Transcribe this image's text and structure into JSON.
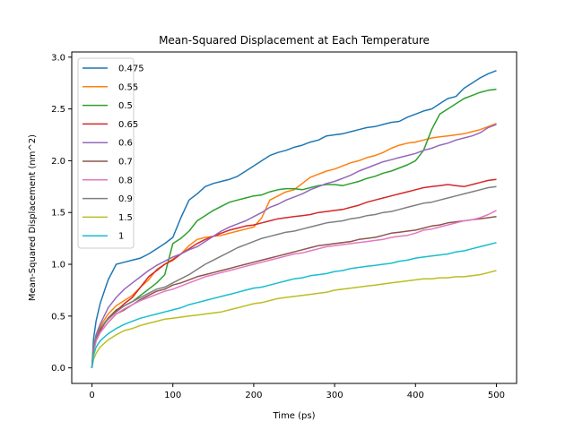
{
  "chart_data": {
    "type": "line",
    "title": "Mean-Squared Displacement at Each Temperature",
    "xlabel": "Time (ps)",
    "ylabel": "Mean-Squared Displacement (nm^2)",
    "xlim": [
      -25,
      525
    ],
    "ylim": [
      -0.15,
      3.05
    ],
    "xticks": [
      0,
      100,
      200,
      300,
      400,
      500
    ],
    "yticks": [
      0.0,
      0.5,
      1.0,
      1.5,
      2.0,
      2.5,
      3.0
    ],
    "xtick_labels": [
      "0",
      "100",
      "200",
      "300",
      "400",
      "500"
    ],
    "ytick_labels": [
      "0.0",
      "0.5",
      "1.0",
      "1.5",
      "2.0",
      "2.5",
      "3.0"
    ],
    "legend_position": "upper-left",
    "grid": false,
    "x": [
      0,
      2,
      5,
      10,
      20,
      30,
      40,
      50,
      60,
      70,
      80,
      90,
      100,
      110,
      120,
      130,
      140,
      150,
      160,
      170,
      180,
      190,
      200,
      210,
      220,
      230,
      240,
      250,
      260,
      270,
      280,
      290,
      300,
      310,
      320,
      330,
      340,
      350,
      360,
      370,
      380,
      390,
      400,
      410,
      420,
      430,
      440,
      450,
      460,
      470,
      480,
      490,
      500
    ],
    "series": [
      {
        "name": "0.475",
        "color": "#1f77b4",
        "values": [
          0.0,
          0.28,
          0.45,
          0.62,
          0.85,
          1.0,
          1.02,
          1.04,
          1.06,
          1.1,
          1.15,
          1.2,
          1.26,
          1.45,
          1.62,
          1.68,
          1.75,
          1.78,
          1.8,
          1.82,
          1.85,
          1.9,
          1.95,
          2.0,
          2.05,
          2.08,
          2.1,
          2.13,
          2.15,
          2.18,
          2.2,
          2.24,
          2.25,
          2.26,
          2.28,
          2.3,
          2.32,
          2.33,
          2.35,
          2.37,
          2.38,
          2.42,
          2.45,
          2.48,
          2.5,
          2.55,
          2.6,
          2.62,
          2.7,
          2.75,
          2.8,
          2.84,
          2.87
        ]
      },
      {
        "name": "0.55",
        "color": "#ff7f0e",
        "values": [
          0.0,
          0.2,
          0.3,
          0.4,
          0.52,
          0.6,
          0.65,
          0.7,
          0.78,
          0.85,
          0.95,
          1.0,
          1.05,
          1.1,
          1.18,
          1.24,
          1.26,
          1.27,
          1.28,
          1.3,
          1.32,
          1.34,
          1.36,
          1.45,
          1.62,
          1.66,
          1.7,
          1.72,
          1.78,
          1.84,
          1.87,
          1.9,
          1.92,
          1.95,
          1.98,
          2.0,
          2.03,
          2.05,
          2.08,
          2.12,
          2.15,
          2.17,
          2.18,
          2.2,
          2.22,
          2.23,
          2.24,
          2.25,
          2.26,
          2.28,
          2.3,
          2.33,
          2.36
        ]
      },
      {
        "name": "0.5",
        "color": "#2ca02c",
        "values": [
          0.0,
          0.18,
          0.28,
          0.38,
          0.48,
          0.56,
          0.6,
          0.64,
          0.7,
          0.76,
          0.82,
          0.9,
          1.2,
          1.25,
          1.32,
          1.42,
          1.47,
          1.52,
          1.56,
          1.6,
          1.62,
          1.64,
          1.66,
          1.67,
          1.7,
          1.72,
          1.73,
          1.73,
          1.72,
          1.74,
          1.76,
          1.77,
          1.77,
          1.76,
          1.78,
          1.8,
          1.83,
          1.85,
          1.88,
          1.9,
          1.93,
          1.96,
          2.0,
          2.1,
          2.3,
          2.45,
          2.5,
          2.55,
          2.6,
          2.63,
          2.66,
          2.68,
          2.69
        ]
      },
      {
        "name": "0.65",
        "color": "#d62728",
        "values": [
          0.0,
          0.18,
          0.28,
          0.36,
          0.48,
          0.55,
          0.62,
          0.68,
          0.78,
          0.88,
          0.94,
          1.0,
          1.04,
          1.1,
          1.15,
          1.2,
          1.24,
          1.27,
          1.3,
          1.33,
          1.35,
          1.37,
          1.38,
          1.4,
          1.42,
          1.44,
          1.45,
          1.46,
          1.47,
          1.48,
          1.5,
          1.51,
          1.52,
          1.53,
          1.55,
          1.57,
          1.6,
          1.62,
          1.64,
          1.66,
          1.68,
          1.7,
          1.72,
          1.74,
          1.75,
          1.76,
          1.77,
          1.76,
          1.75,
          1.77,
          1.79,
          1.81,
          1.82
        ]
      },
      {
        "name": "0.6",
        "color": "#9467bd",
        "values": [
          0.0,
          0.2,
          0.32,
          0.42,
          0.58,
          0.68,
          0.76,
          0.82,
          0.88,
          0.94,
          0.99,
          1.03,
          1.07,
          1.1,
          1.14,
          1.17,
          1.22,
          1.27,
          1.32,
          1.36,
          1.39,
          1.42,
          1.46,
          1.5,
          1.55,
          1.58,
          1.62,
          1.65,
          1.68,
          1.72,
          1.75,
          1.78,
          1.8,
          1.83,
          1.86,
          1.9,
          1.93,
          1.96,
          1.99,
          2.01,
          2.03,
          2.05,
          2.07,
          2.1,
          2.12,
          2.15,
          2.17,
          2.2,
          2.22,
          2.24,
          2.27,
          2.32,
          2.35
        ]
      },
      {
        "name": "0.7",
        "color": "#8c564b",
        "values": [
          0.0,
          0.16,
          0.26,
          0.34,
          0.44,
          0.52,
          0.56,
          0.61,
          0.66,
          0.7,
          0.74,
          0.76,
          0.8,
          0.82,
          0.85,
          0.88,
          0.9,
          0.92,
          0.94,
          0.96,
          0.98,
          1.0,
          1.02,
          1.04,
          1.06,
          1.08,
          1.1,
          1.12,
          1.14,
          1.16,
          1.18,
          1.19,
          1.2,
          1.21,
          1.22,
          1.24,
          1.25,
          1.26,
          1.28,
          1.3,
          1.31,
          1.32,
          1.33,
          1.35,
          1.37,
          1.38,
          1.4,
          1.41,
          1.42,
          1.43,
          1.44,
          1.45,
          1.46
        ]
      },
      {
        "name": "0.8",
        "color": "#e377c2",
        "values": [
          0.0,
          0.16,
          0.26,
          0.34,
          0.44,
          0.52,
          0.57,
          0.61,
          0.65,
          0.68,
          0.71,
          0.74,
          0.76,
          0.79,
          0.82,
          0.85,
          0.88,
          0.9,
          0.92,
          0.94,
          0.96,
          0.98,
          1.0,
          1.02,
          1.04,
          1.06,
          1.08,
          1.1,
          1.11,
          1.13,
          1.15,
          1.17,
          1.18,
          1.19,
          1.2,
          1.21,
          1.22,
          1.23,
          1.24,
          1.26,
          1.27,
          1.28,
          1.3,
          1.33,
          1.34,
          1.36,
          1.38,
          1.4,
          1.42,
          1.43,
          1.45,
          1.48,
          1.52
        ]
      },
      {
        "name": "0.9",
        "color": "#7f7f7f",
        "values": [
          0.0,
          0.2,
          0.3,
          0.38,
          0.47,
          0.54,
          0.6,
          0.64,
          0.68,
          0.72,
          0.76,
          0.78,
          0.82,
          0.86,
          0.9,
          0.95,
          1.0,
          1.04,
          1.08,
          1.12,
          1.16,
          1.19,
          1.22,
          1.25,
          1.27,
          1.29,
          1.31,
          1.32,
          1.34,
          1.36,
          1.38,
          1.4,
          1.41,
          1.42,
          1.44,
          1.45,
          1.47,
          1.48,
          1.5,
          1.51,
          1.53,
          1.55,
          1.57,
          1.59,
          1.6,
          1.62,
          1.64,
          1.66,
          1.68,
          1.7,
          1.72,
          1.74,
          1.75
        ]
      },
      {
        "name": "1.5",
        "color": "#bcbd22",
        "values": [
          0.0,
          0.08,
          0.14,
          0.2,
          0.27,
          0.32,
          0.36,
          0.38,
          0.41,
          0.43,
          0.45,
          0.47,
          0.48,
          0.49,
          0.5,
          0.51,
          0.52,
          0.53,
          0.54,
          0.56,
          0.58,
          0.6,
          0.62,
          0.63,
          0.65,
          0.67,
          0.68,
          0.69,
          0.7,
          0.71,
          0.72,
          0.73,
          0.75,
          0.76,
          0.77,
          0.78,
          0.79,
          0.8,
          0.81,
          0.82,
          0.83,
          0.84,
          0.85,
          0.86,
          0.86,
          0.87,
          0.87,
          0.88,
          0.88,
          0.89,
          0.9,
          0.92,
          0.94
        ]
      },
      {
        "name": "1",
        "color": "#17becf",
        "values": [
          0.0,
          0.12,
          0.2,
          0.26,
          0.33,
          0.38,
          0.42,
          0.45,
          0.48,
          0.5,
          0.52,
          0.54,
          0.56,
          0.58,
          0.61,
          0.63,
          0.65,
          0.67,
          0.69,
          0.71,
          0.73,
          0.75,
          0.77,
          0.78,
          0.8,
          0.82,
          0.84,
          0.86,
          0.87,
          0.89,
          0.9,
          0.91,
          0.93,
          0.94,
          0.96,
          0.97,
          0.98,
          0.99,
          1.0,
          1.01,
          1.03,
          1.04,
          1.06,
          1.07,
          1.08,
          1.09,
          1.1,
          1.12,
          1.13,
          1.15,
          1.17,
          1.19,
          1.21
        ]
      }
    ]
  }
}
